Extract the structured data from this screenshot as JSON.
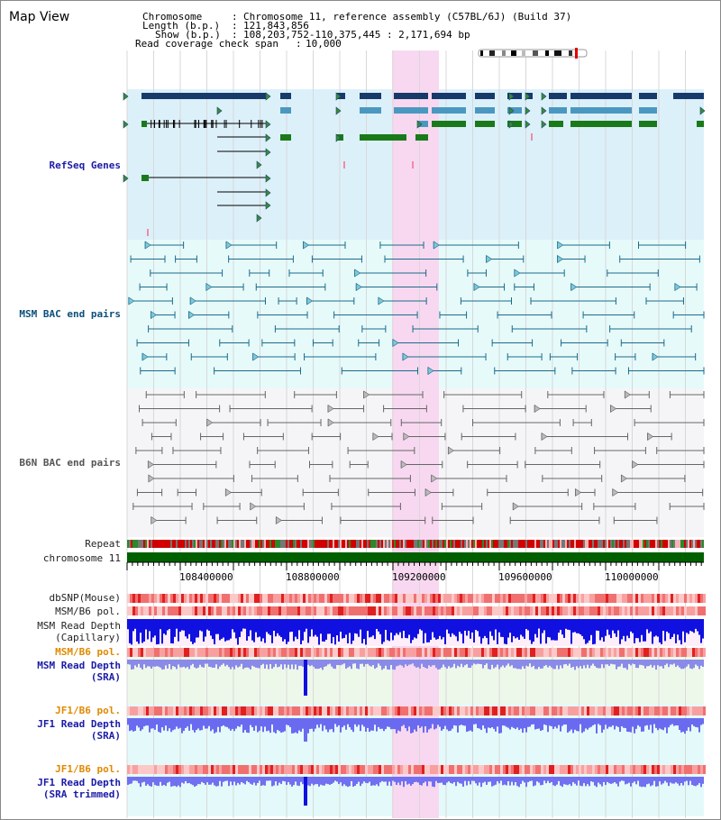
{
  "title": "Map View",
  "header": {
    "chromosome_key": "Chromosome",
    "chromosome_value": "Chromosome 11, reference assembly (C57BL/6J) (Build 37)",
    "length_key": "Length (b.p.)",
    "length_value": "121,843,856",
    "show_key": "Show (b.p.)",
    "show_value": "108,203,752-110,375,445 : 2,171,694 bp",
    "coverage_key": "Read coverage check span",
    "coverage_value": "10,000"
  },
  "tracks": {
    "refseq": "RefSeq Genes",
    "msm_bac": "MSM BAC end pairs",
    "b6n_bac": "B6N BAC end pairs",
    "repeat": "Repeat",
    "chromosome": "chromosome 11",
    "dbsnp": "dbSNP(Mouse)",
    "msm_b6_pol_1": "MSM/B6 pol.",
    "msm_read_depth_cap_1": "MSM Read Depth",
    "msm_read_depth_cap_2": "(Capillary)",
    "msm_b6_pol_2": "MSM/B6 pol.",
    "msm_read_depth_sra_1": "MSM Read Depth",
    "msm_read_depth_sra_2": "(SRA)",
    "jf1_b6_pol_1": "JF1/B6 pol.",
    "jf1_read_depth_sra_1": "JF1 Read Depth",
    "jf1_read_depth_sra_2": "(SRA)",
    "jf1_b6_pol_2": "JF1/B6 pol.",
    "jf1_read_depth_trim_1": "JF1 Read Depth",
    "jf1_read_depth_trim_2": "(SRA trimmed)"
  },
  "axis_ticks": [
    "108400000",
    "108800000",
    "109200000",
    "109600000",
    "110000000"
  ],
  "colors": {
    "refseq_bg": "#dcf0fa",
    "msm_bg": "#e6fafa",
    "b6n_bg": "#f5f5f8",
    "highlight": "#f8d8f0",
    "chromosome_bar": "#006000",
    "navy": "#173a6a",
    "steel": "#4a98c0",
    "green": "#1a7a1a",
    "teal_line": "#1c6b8a",
    "depth_blue": "#1010e0",
    "depth_light": "#6a6af0"
  }
}
